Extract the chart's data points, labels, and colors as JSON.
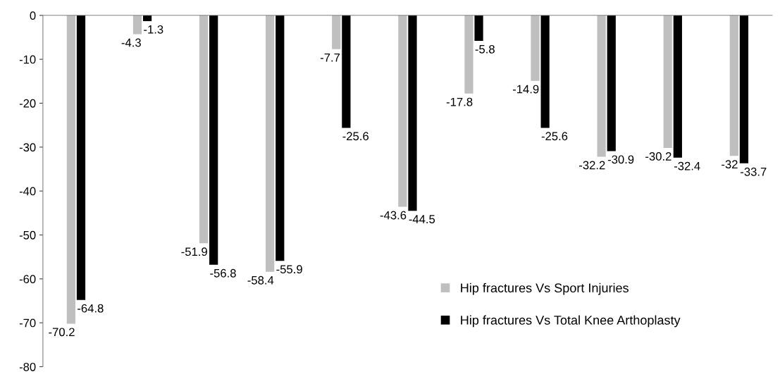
{
  "chart_data": {
    "type": "bar",
    "categories": [
      null,
      null,
      null,
      null,
      null,
      null,
      null,
      null,
      null,
      null,
      null
    ],
    "series": [
      {
        "name": "Hip fractures Vs Sport Injuries",
        "color": "#bfbfbf",
        "values": [
          -70.2,
          -4.3,
          -51.9,
          -58.4,
          -7.7,
          -43.6,
          -17.8,
          -14.9,
          -32.2,
          -30.2,
          -32
        ]
      },
      {
        "name": "Hip fractures Vs Total Knee Arthoplasty",
        "color": "#000000",
        "values": [
          -64.8,
          -1.3,
          -56.8,
          -55.9,
          -25.6,
          -44.5,
          -5.8,
          -25.6,
          -30.9,
          -32.4,
          -33.7
        ]
      }
    ],
    "ylim": [
      -80,
      0
    ],
    "yticks": [
      -80,
      -70,
      -60,
      -50,
      -40,
      -30,
      -20,
      -10,
      0
    ],
    "data_labels": true,
    "legend": "bottom right",
    "grid": false
  }
}
